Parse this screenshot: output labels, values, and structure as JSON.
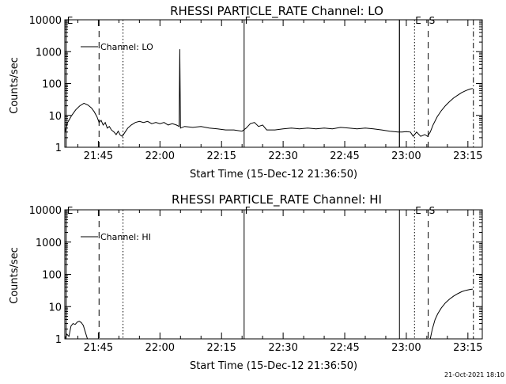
{
  "chart_data": [
    {
      "type": "line",
      "title": "RHESSI PARTICLE_RATE Channel: LO",
      "xlabel": "Start Time (15-Dec-12 21:36:50)",
      "ylabel": "Counts/sec",
      "yscale": "log",
      "xlim": [
        "21:36:50",
        "23:18:30"
      ],
      "ylim": [
        1,
        10000
      ],
      "xticks": [
        "21:45",
        "22:00",
        "22:15",
        "22:30",
        "22:45",
        "23:00",
        "23:15"
      ],
      "yticks": [
        "1",
        "10",
        "100",
        "1000",
        "10000"
      ],
      "legend": {
        "label": "Channel: LO",
        "placement": "top-left"
      },
      "markers": [
        {
          "time": "21:37:10",
          "label": "E",
          "style": "solid"
        },
        {
          "time": "21:45:10",
          "label": "",
          "style": "dashed"
        },
        {
          "time": "21:51:00",
          "label": "",
          "style": "dotted"
        },
        {
          "time": "22:20:30",
          "label": "F",
          "style": "solid"
        },
        {
          "time": "22:58:20",
          "label": "",
          "style": "solid"
        },
        {
          "time": "22:58:20",
          "label": "",
          "style": "solid"
        },
        {
          "time": "23:02:00",
          "label": "E",
          "style": "dotted"
        },
        {
          "time": "23:05:20",
          "label": "S",
          "style": "dashed"
        },
        {
          "time": "23:16:20",
          "label": "",
          "style": "dashdot"
        }
      ],
      "series": [
        {
          "name": "Channel: LO",
          "points": [
            [
              "21:36:50",
              3
            ],
            [
              "21:37:30",
              6
            ],
            [
              "21:38:30",
              10
            ],
            [
              "21:39:30",
              15
            ],
            [
              "21:40:30",
              20
            ],
            [
              "21:41:30",
              24
            ],
            [
              "21:42:30",
              21
            ],
            [
              "21:43:20",
              17
            ],
            [
              "21:44:00",
              13
            ],
            [
              "21:44:40",
              9
            ],
            [
              "21:45:10",
              6
            ],
            [
              "21:45:40",
              7
            ],
            [
              "21:46:10",
              5
            ],
            [
              "21:46:40",
              6
            ],
            [
              "21:47:10",
              4
            ],
            [
              "21:47:40",
              4.5
            ],
            [
              "21:48:10",
              3.5
            ],
            [
              "21:48:50",
              3
            ],
            [
              "21:49:20",
              2.5
            ],
            [
              "21:49:50",
              3.2
            ],
            [
              "21:50:20",
              2.4
            ],
            [
              "21:50:50",
              2.2
            ],
            [
              "21:51:30",
              3
            ],
            [
              "21:52:10",
              4
            ],
            [
              "21:53:00",
              5
            ],
            [
              "21:54:00",
              6
            ],
            [
              "21:55:00",
              6.5
            ],
            [
              "21:56:00",
              6
            ],
            [
              "21:57:00",
              6.5
            ],
            [
              "21:58:00",
              5.5
            ],
            [
              "21:59:00",
              6
            ],
            [
              "22:00:00",
              5.5
            ],
            [
              "22:01:00",
              6
            ],
            [
              "22:02:00",
              5
            ],
            [
              "22:03:00",
              5.5
            ],
            [
              "22:04:00",
              5
            ],
            [
              "22:04:40",
              4.5
            ],
            [
              "22:04:50",
              1200
            ],
            [
              "22:05:00",
              4
            ],
            [
              "22:06:00",
              4.5
            ],
            [
              "22:08:00",
              4.2
            ],
            [
              "22:10:00",
              4.5
            ],
            [
              "22:12:00",
              4
            ],
            [
              "22:14:00",
              3.8
            ],
            [
              "22:16:00",
              3.5
            ],
            [
              "22:18:00",
              3.5
            ],
            [
              "22:20:00",
              3.2
            ],
            [
              "22:21:00",
              4
            ],
            [
              "22:22:00",
              5.5
            ],
            [
              "22:23:00",
              6
            ],
            [
              "22:24:00",
              4.5
            ],
            [
              "22:25:00",
              5
            ],
            [
              "22:26:00",
              3.5
            ],
            [
              "22:28:00",
              3.5
            ],
            [
              "22:30:00",
              3.8
            ],
            [
              "22:32:00",
              4
            ],
            [
              "22:34:00",
              3.8
            ],
            [
              "22:36:00",
              4
            ],
            [
              "22:38:00",
              3.8
            ],
            [
              "22:40:00",
              4
            ],
            [
              "22:42:00",
              3.8
            ],
            [
              "22:44:00",
              4.2
            ],
            [
              "22:46:00",
              4
            ],
            [
              "22:48:00",
              3.8
            ],
            [
              "22:50:00",
              4
            ],
            [
              "22:52:00",
              3.8
            ],
            [
              "22:54:00",
              3.5
            ],
            [
              "22:56:00",
              3.2
            ],
            [
              "22:58:00",
              3
            ],
            [
              "22:59:00",
              3
            ],
            [
              "23:00:00",
              3.1
            ],
            [
              "23:01:00",
              3
            ],
            [
              "23:01:40",
              2.2
            ],
            [
              "23:02:30",
              3
            ],
            [
              "23:03:30",
              2.2
            ],
            [
              "23:04:30",
              2.5
            ],
            [
              "23:05:10",
              2.2
            ],
            [
              "23:05:50",
              3
            ],
            [
              "23:06:30",
              5
            ],
            [
              "23:07:30",
              9
            ],
            [
              "23:08:30",
              14
            ],
            [
              "23:09:30",
              20
            ],
            [
              "23:10:30",
              27
            ],
            [
              "23:11:30",
              35
            ],
            [
              "23:12:30",
              43
            ],
            [
              "23:13:30",
              52
            ],
            [
              "23:14:30",
              60
            ],
            [
              "23:15:30",
              67
            ],
            [
              "23:16:10",
              70
            ]
          ]
        }
      ]
    },
    {
      "type": "line",
      "title": "RHESSI PARTICLE_RATE Channel: HI",
      "xlabel": "Start Time (15-Dec-12 21:36:50)",
      "ylabel": "Counts/sec",
      "yscale": "log",
      "xlim": [
        "21:36:50",
        "23:18:30"
      ],
      "ylim": [
        1,
        10000
      ],
      "xticks": [
        "21:45",
        "22:00",
        "22:15",
        "22:30",
        "22:45",
        "23:00",
        "23:15"
      ],
      "yticks": [
        "1",
        "10",
        "100",
        "1000",
        "10000"
      ],
      "legend": {
        "label": "Channel: HI",
        "placement": "top-left"
      },
      "markers": [
        {
          "time": "21:37:10",
          "label": "E",
          "style": "solid"
        },
        {
          "time": "21:45:10",
          "label": "",
          "style": "dashed"
        },
        {
          "time": "21:51:00",
          "label": "",
          "style": "dotted"
        },
        {
          "time": "22:20:30",
          "label": "F",
          "style": "solid"
        },
        {
          "time": "22:58:20",
          "label": "",
          "style": "solid"
        },
        {
          "time": "23:02:00",
          "label": "E",
          "style": "dotted"
        },
        {
          "time": "23:05:20",
          "label": "S",
          "style": "dashed"
        },
        {
          "time": "23:16:20",
          "label": "",
          "style": "dashdot"
        }
      ],
      "series": [
        {
          "name": "Channel: HI",
          "points": [
            [
              "21:36:50",
              1
            ],
            [
              "21:37:20",
              1.4
            ],
            [
              "21:37:50",
              1.2
            ],
            [
              "21:38:20",
              2.5
            ],
            [
              "21:38:50",
              3
            ],
            [
              "21:39:20",
              2.8
            ],
            [
              "21:39:50",
              3.3
            ],
            [
              "21:40:20",
              3.5
            ],
            [
              "21:40:50",
              3.2
            ],
            [
              "21:41:20",
              2.6
            ],
            [
              "21:41:50",
              1.6
            ],
            [
              "21:42:20",
              1
            ],
            null,
            [
              "23:05:50",
              1
            ],
            [
              "23:06:20",
              2
            ],
            [
              "23:07:00",
              4
            ],
            [
              "23:07:40",
              6
            ],
            [
              "23:08:30",
              9
            ],
            [
              "23:09:30",
              13
            ],
            [
              "23:10:30",
              17
            ],
            [
              "23:11:30",
              21
            ],
            [
              "23:12:30",
              25
            ],
            [
              "23:13:30",
              29
            ],
            [
              "23:14:30",
              32
            ],
            [
              "23:15:30",
              34
            ],
            [
              "23:16:10",
              35
            ]
          ]
        }
      ]
    }
  ],
  "footer": {
    "timestamp": "21-Oct-2021 18:10"
  }
}
